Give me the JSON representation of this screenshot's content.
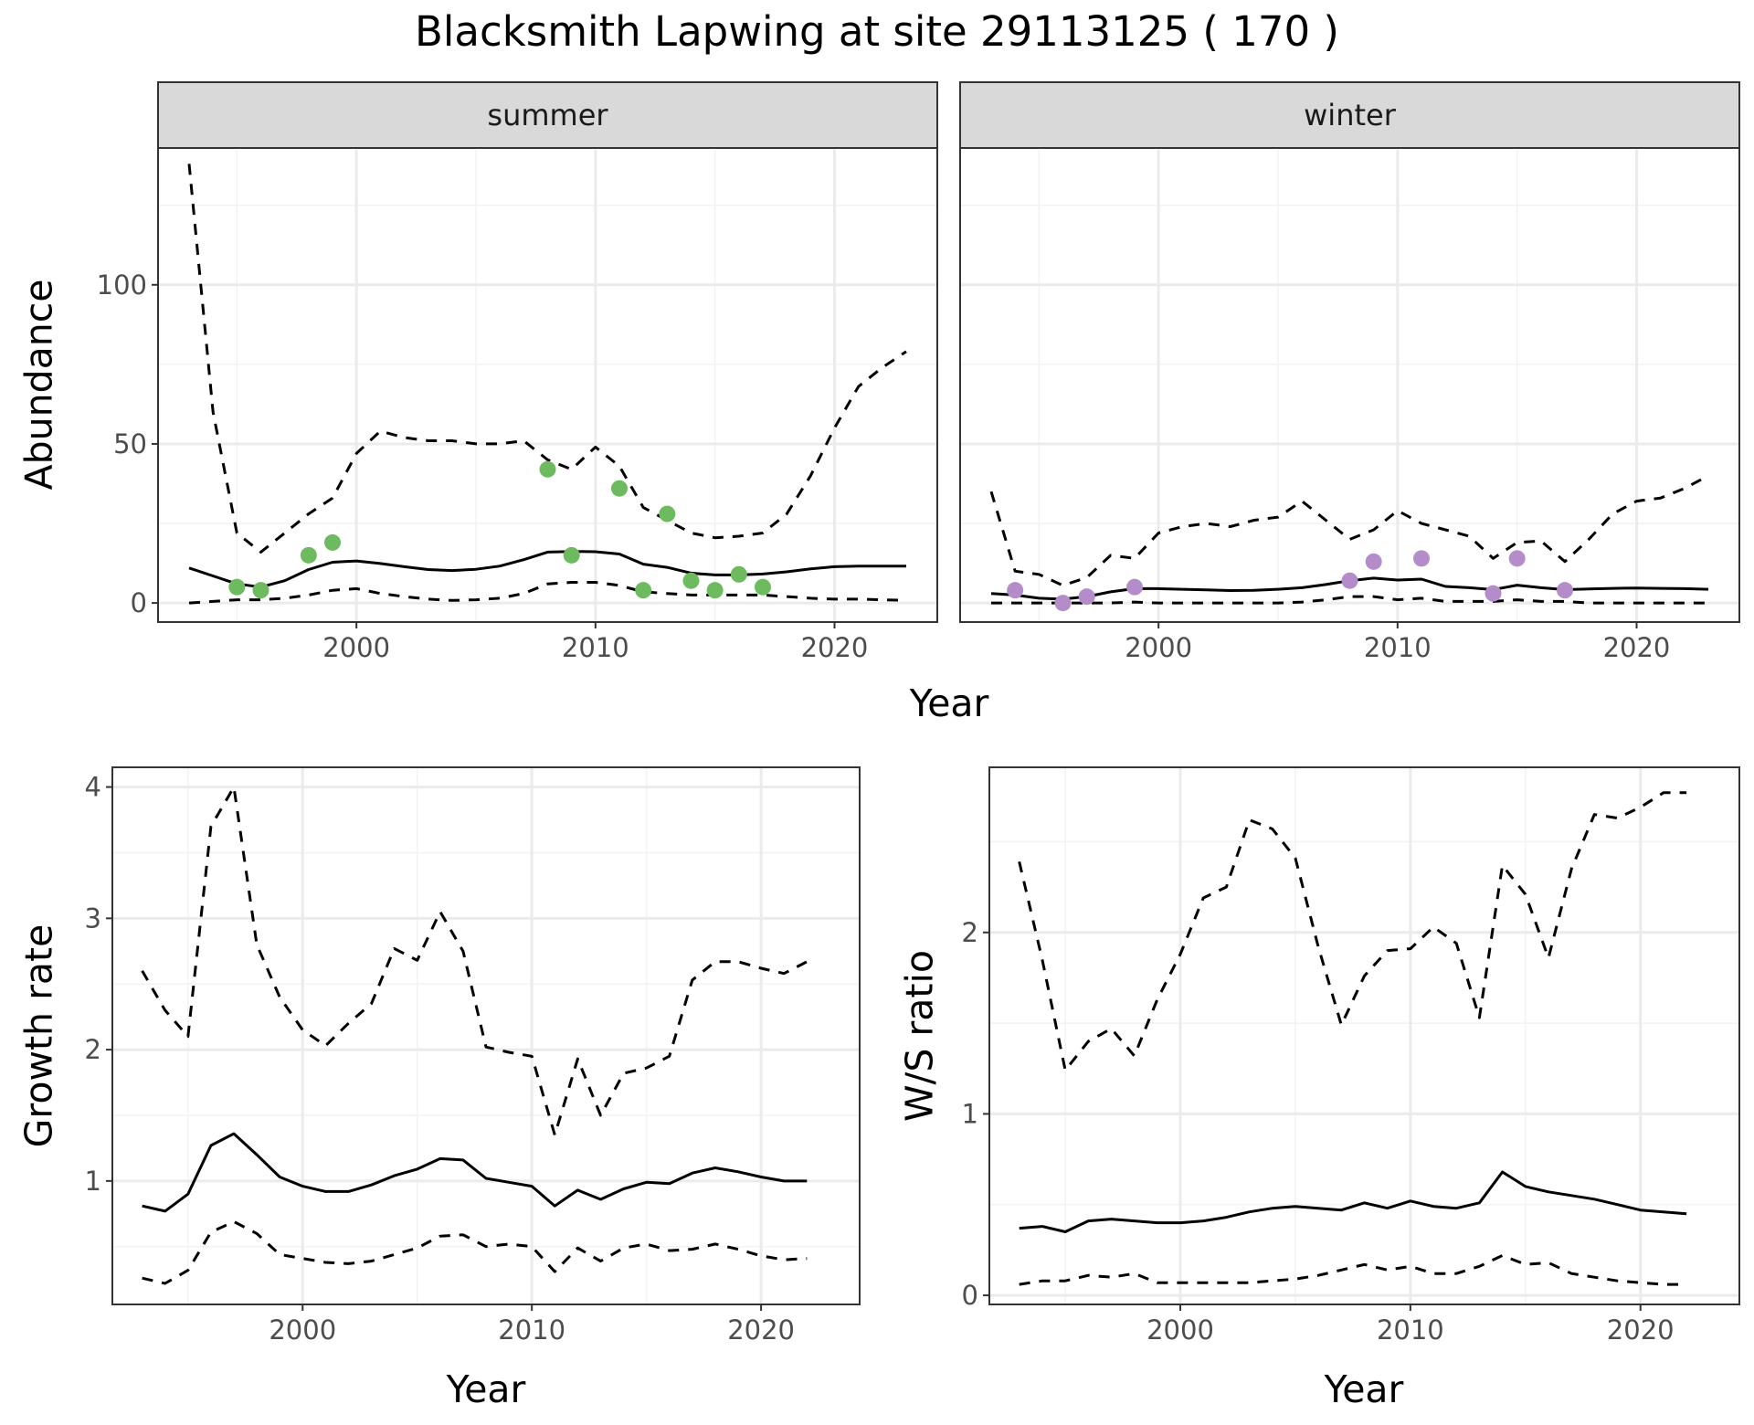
{
  "title": "Blacksmith Lapwing at site 29113125 ( 170 )",
  "colors": {
    "summer_points": "#6dbb5e",
    "winter_points": "#b38cc9",
    "line": "#000000",
    "grid_major": "#ebebeb",
    "grid_minor": "#f3f3f3",
    "strip_bg": "#d9d9d9",
    "panel_border": "#333333"
  },
  "chart_data": [
    {
      "id": "abundance_summer",
      "type": "line",
      "facet": "summer",
      "xlabel": "Year",
      "ylabel": "Abundance",
      "xlim": [
        1991.7,
        2024.3
      ],
      "ylim": [
        -6,
        143
      ],
      "xticks": [
        2000,
        2010,
        2020
      ],
      "yticks": [
        0,
        50,
        100
      ],
      "grid": true,
      "x": [
        1993,
        1994,
        1995,
        1996,
        1997,
        1998,
        1999,
        2000,
        2001,
        2002,
        2003,
        2004,
        2005,
        2006,
        2007,
        2008,
        2009,
        2010,
        2011,
        2012,
        2013,
        2014,
        2015,
        2016,
        2017,
        2018,
        2019,
        2020,
        2021,
        2022,
        2023
      ],
      "mean": [
        11,
        8.5,
        6,
        5,
        7,
        10.5,
        12.8,
        13.2,
        12.4,
        11.4,
        10.5,
        10.2,
        10.6,
        11.6,
        13.6,
        16,
        16.2,
        16.1,
        15.4,
        12.2,
        11.2,
        9.4,
        8.8,
        8.8,
        9.1,
        9.8,
        10.7,
        11.4,
        11.6,
        11.6,
        11.6
      ],
      "upper": [
        138,
        60,
        22,
        16,
        22,
        28,
        33,
        47,
        54,
        52,
        51,
        51,
        50,
        50,
        51,
        45,
        42,
        49,
        43,
        30,
        26,
        22,
        20.5,
        21,
        22,
        28,
        40,
        55,
        68,
        74,
        79
      ],
      "lower": [
        0,
        0.5,
        1,
        1,
        1.5,
        2.5,
        4,
        4.5,
        3,
        2,
        1.2,
        0.8,
        1,
        1.5,
        3,
        6,
        6.5,
        6.5,
        5.5,
        3.5,
        3,
        2.5,
        2.5,
        2.5,
        2.5,
        2,
        1.5,
        1.2,
        1.2,
        1,
        0.8
      ],
      "observed": {
        "x": [
          1995,
          1996,
          1998,
          1999,
          2008,
          2009,
          2011,
          2012,
          2013,
          2014,
          2015,
          2016,
          2017
        ],
        "y": [
          5,
          4,
          15,
          19,
          42,
          15,
          36,
          4,
          28,
          7,
          4,
          9,
          5
        ]
      }
    },
    {
      "id": "abundance_winter",
      "type": "line",
      "facet": "winter",
      "xlabel": "Year",
      "ylabel": "Abundance",
      "xlim": [
        1991.7,
        2024.3
      ],
      "ylim": [
        -6,
        143
      ],
      "xticks": [
        2000,
        2010,
        2020
      ],
      "yticks": [
        0,
        50,
        100
      ],
      "grid": true,
      "x": [
        1993,
        1994,
        1995,
        1996,
        1997,
        1998,
        1999,
        2000,
        2001,
        2002,
        2003,
        2004,
        2005,
        2006,
        2007,
        2008,
        2009,
        2010,
        2011,
        2012,
        2013,
        2014,
        2015,
        2016,
        2017,
        2018,
        2019,
        2020,
        2021,
        2022,
        2023
      ],
      "mean": [
        3,
        2.5,
        1.5,
        1.2,
        2,
        3.5,
        4.5,
        4.5,
        4.3,
        4.1,
        3.9,
        4,
        4.3,
        4.8,
        5.8,
        7,
        7.8,
        7.2,
        7.5,
        5.2,
        4.8,
        4.2,
        5.6,
        4.8,
        4.2,
        4.4,
        4.6,
        4.7,
        4.6,
        4.5,
        4.3
      ],
      "upper": [
        35,
        10,
        9,
        5.5,
        8,
        15,
        14,
        22,
        24,
        25,
        24,
        26,
        27,
        32,
        26,
        20,
        23,
        29,
        25,
        23,
        21,
        14,
        19,
        19.5,
        13,
        20,
        28,
        32,
        33,
        36,
        40
      ],
      "lower": [
        0,
        0,
        0,
        0,
        0,
        0,
        0.3,
        0,
        0,
        0,
        0,
        0,
        0,
        0.3,
        1,
        2,
        2,
        1,
        1.5,
        0.5,
        0.5,
        0.5,
        1,
        0.5,
        0.5,
        0,
        0,
        0,
        0,
        0,
        0
      ],
      "observed": {
        "x": [
          1994,
          1996,
          1997,
          1999,
          2008,
          2009,
          2011,
          2014,
          2015,
          2017
        ],
        "y": [
          4,
          0,
          2,
          5,
          7,
          13,
          14,
          3,
          14,
          4
        ]
      }
    },
    {
      "id": "growth_rate",
      "type": "line",
      "xlabel": "Year",
      "ylabel": "Growth rate",
      "xlim": [
        1991.7,
        2024.3
      ],
      "ylim": [
        0.06,
        4.15
      ],
      "xticks": [
        2000,
        2010,
        2020
      ],
      "yticks": [
        1,
        2,
        3,
        4
      ],
      "grid": true,
      "x": [
        1993,
        1994,
        1995,
        1996,
        1997,
        1998,
        1999,
        2000,
        2001,
        2002,
        2003,
        2004,
        2005,
        2006,
        2007,
        2008,
        2009,
        2010,
        2011,
        2012,
        2013,
        2014,
        2015,
        2016,
        2017,
        2018,
        2019,
        2020,
        2021,
        2022
      ],
      "mean": [
        0.81,
        0.77,
        0.9,
        1.27,
        1.36,
        1.2,
        1.03,
        0.96,
        0.92,
        0.92,
        0.97,
        1.04,
        1.09,
        1.17,
        1.16,
        1.02,
        0.99,
        0.96,
        0.81,
        0.93,
        0.86,
        0.94,
        0.99,
        0.98,
        1.06,
        1.1,
        1.07,
        1.03,
        1.0,
        1.0
      ],
      "upper": [
        2.6,
        2.3,
        2.1,
        3.7,
        4.0,
        2.8,
        2.4,
        2.15,
        2.03,
        2.2,
        2.35,
        2.77,
        2.68,
        3.05,
        2.75,
        2.02,
        1.98,
        1.95,
        1.35,
        1.93,
        1.5,
        1.82,
        1.86,
        1.95,
        2.53,
        2.67,
        2.67,
        2.62,
        2.58,
        2.67
      ],
      "lower": [
        0.26,
        0.22,
        0.32,
        0.61,
        0.69,
        0.6,
        0.44,
        0.41,
        0.38,
        0.37,
        0.39,
        0.44,
        0.49,
        0.58,
        0.59,
        0.5,
        0.52,
        0.5,
        0.31,
        0.49,
        0.39,
        0.49,
        0.52,
        0.47,
        0.48,
        0.52,
        0.48,
        0.43,
        0.4,
        0.41
      ]
    },
    {
      "id": "ws_ratio",
      "type": "line",
      "xlabel": "Year",
      "ylabel": "W/S ratio",
      "xlim": [
        1991.7,
        2024.3
      ],
      "ylim": [
        -0.05,
        2.91
      ],
      "xticks": [
        2000,
        2010,
        2020
      ],
      "yticks": [
        0,
        1,
        2
      ],
      "grid": true,
      "x": [
        1993,
        1994,
        1995,
        1996,
        1997,
        1998,
        1999,
        2000,
        2001,
        2002,
        2003,
        2004,
        2005,
        2006,
        2007,
        2008,
        2009,
        2010,
        2011,
        2012,
        2013,
        2014,
        2015,
        2016,
        2017,
        2018,
        2019,
        2020,
        2021,
        2022
      ],
      "mean": [
        0.37,
        0.38,
        0.35,
        0.41,
        0.42,
        0.41,
        0.4,
        0.4,
        0.41,
        0.43,
        0.46,
        0.48,
        0.49,
        0.48,
        0.47,
        0.51,
        0.48,
        0.52,
        0.49,
        0.48,
        0.51,
        0.68,
        0.6,
        0.57,
        0.55,
        0.53,
        0.5,
        0.47,
        0.46,
        0.45
      ],
      "upper": [
        2.39,
        1.85,
        1.24,
        1.4,
        1.47,
        1.32,
        1.63,
        1.88,
        2.19,
        2.25,
        2.62,
        2.57,
        2.41,
        1.92,
        1.49,
        1.76,
        1.9,
        1.91,
        2.03,
        1.94,
        1.53,
        2.37,
        2.21,
        1.86,
        2.35,
        2.65,
        2.63,
        2.69,
        2.77,
        2.77
      ],
      "lower": [
        0.06,
        0.08,
        0.08,
        0.11,
        0.1,
        0.12,
        0.07,
        0.07,
        0.07,
        0.07,
        0.07,
        0.08,
        0.09,
        0.11,
        0.14,
        0.17,
        0.14,
        0.16,
        0.12,
        0.12,
        0.16,
        0.22,
        0.17,
        0.18,
        0.12,
        0.1,
        0.08,
        0.07,
        0.06,
        0.06
      ]
    }
  ]
}
